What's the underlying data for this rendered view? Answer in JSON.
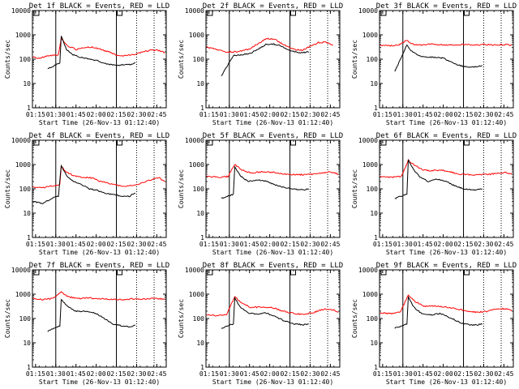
{
  "chart_data": {
    "type": "line",
    "x_ticks": [
      "01:15",
      "01:30",
      "01:45",
      "02:00",
      "02:15",
      "02:30",
      "02:45"
    ],
    "x_label": "Start Time (26-Nov-13 01:12:40)",
    "y_label": "Counts/sec",
    "y_scale": "log",
    "ylim": [
      1,
      10000
    ],
    "y_ticks": [
      "1",
      "10",
      "100",
      "1000",
      "10000"
    ],
    "xlim_minutes": [
      "01:12:40",
      "02:52:00"
    ],
    "series_colors": {
      "events": "#000000",
      "lld": "#ff0000"
    },
    "panels": [
      {
        "title": "Det 1f BLACK = Events, RED = LLD",
        "solid_lines": [
          "01:30",
          "02:15"
        ],
        "dotted_lines": [
          "02:30",
          "02:43"
        ],
        "events": [
          [
            1.4,
            40
          ],
          [
            1.55,
            70
          ],
          [
            1.567,
            900
          ],
          [
            1.633,
            250
          ],
          [
            1.7,
            160
          ],
          [
            1.8,
            120
          ],
          [
            1.917,
            100
          ],
          [
            2.0,
            90
          ],
          [
            2.083,
            70
          ],
          [
            2.167,
            60
          ],
          [
            2.25,
            55
          ],
          [
            2.333,
            60
          ],
          [
            2.433,
            60
          ],
          [
            2.483,
            70
          ]
        ],
        "lld": [
          [
            1.217,
            120
          ],
          [
            1.3,
            110
          ],
          [
            1.4,
            140
          ],
          [
            1.533,
            150
          ],
          [
            1.567,
            700
          ],
          [
            1.65,
            350
          ],
          [
            1.75,
            250
          ],
          [
            1.85,
            300
          ],
          [
            1.95,
            320
          ],
          [
            2.05,
            260
          ],
          [
            2.15,
            200
          ],
          [
            2.25,
            150
          ],
          [
            2.333,
            140
          ],
          [
            2.45,
            150
          ],
          [
            2.583,
            200
          ],
          [
            2.667,
            230
          ],
          [
            2.783,
            230
          ],
          [
            2.85,
            180
          ]
        ]
      },
      {
        "title": "Det 2f BLACK = Events, RED = LLD",
        "solid_lines": [
          "01:30",
          "02:15"
        ],
        "dotted_lines": [
          "02:30",
          "02:43"
        ],
        "events": [
          [
            1.4,
            20
          ],
          [
            1.55,
            140
          ],
          [
            1.633,
            150
          ],
          [
            1.75,
            170
          ],
          [
            1.85,
            250
          ],
          [
            1.95,
            400
          ],
          [
            2.05,
            420
          ],
          [
            2.133,
            350
          ],
          [
            2.25,
            230
          ],
          [
            2.367,
            180
          ],
          [
            2.483,
            200
          ]
        ],
        "lld": [
          [
            1.217,
            320
          ],
          [
            1.333,
            250
          ],
          [
            1.45,
            200
          ],
          [
            1.6,
            200
          ],
          [
            1.75,
            260
          ],
          [
            1.883,
            500
          ],
          [
            1.967,
            700
          ],
          [
            2.067,
            650
          ],
          [
            2.167,
            400
          ],
          [
            2.3,
            250
          ],
          [
            2.4,
            230
          ],
          [
            2.517,
            350
          ],
          [
            2.6,
            480
          ],
          [
            2.7,
            500
          ],
          [
            2.783,
            380
          ]
        ]
      },
      {
        "title": "Det 3f BLACK = Events, RED = LLD",
        "solid_lines": [
          "01:30",
          "02:15"
        ],
        "dotted_lines": [
          "02:30",
          "02:43"
        ],
        "events": [
          [
            1.4,
            30
          ],
          [
            1.55,
            400
          ],
          [
            1.6,
            220
          ],
          [
            1.7,
            140
          ],
          [
            1.8,
            120
          ],
          [
            1.917,
            120
          ],
          [
            2.0,
            110
          ],
          [
            2.083,
            80
          ],
          [
            2.167,
            60
          ],
          [
            2.25,
            50
          ],
          [
            2.333,
            45
          ],
          [
            2.433,
            50
          ],
          [
            2.483,
            55
          ]
        ],
        "lld": [
          [
            1.217,
            380
          ],
          [
            1.333,
            350
          ],
          [
            1.45,
            380
          ],
          [
            1.55,
            600
          ],
          [
            1.633,
            400
          ],
          [
            1.75,
            380
          ],
          [
            1.85,
            420
          ],
          [
            1.95,
            400
          ],
          [
            2.083,
            380
          ],
          [
            2.233,
            400
          ],
          [
            2.367,
            380
          ],
          [
            2.5,
            400
          ],
          [
            2.633,
            380
          ],
          [
            2.783,
            400
          ],
          [
            2.85,
            370
          ]
        ]
      },
      {
        "title": "Det 4f BLACK = Events, RED = LLD",
        "solid_lines": [
          "01:30",
          "02:15"
        ],
        "dotted_lines": [
          "02:30",
          "02:43"
        ],
        "events": [
          [
            1.217,
            30
          ],
          [
            1.333,
            25
          ],
          [
            1.45,
            40
          ],
          [
            1.533,
            50
          ],
          [
            1.567,
            900
          ],
          [
            1.633,
            350
          ],
          [
            1.717,
            200
          ],
          [
            1.817,
            150
          ],
          [
            1.917,
            100
          ],
          [
            2.0,
            90
          ],
          [
            2.083,
            70
          ],
          [
            2.167,
            60
          ],
          [
            2.25,
            55
          ],
          [
            2.333,
            50
          ],
          [
            2.417,
            50
          ],
          [
            2.483,
            70
          ]
        ],
        "lld": [
          [
            1.217,
            120
          ],
          [
            1.333,
            110
          ],
          [
            1.45,
            130
          ],
          [
            1.55,
            150
          ],
          [
            1.567,
            800
          ],
          [
            1.65,
            450
          ],
          [
            1.75,
            320
          ],
          [
            1.85,
            300
          ],
          [
            1.95,
            280
          ],
          [
            2.05,
            200
          ],
          [
            2.15,
            170
          ],
          [
            2.25,
            140
          ],
          [
            2.35,
            130
          ],
          [
            2.45,
            140
          ],
          [
            2.583,
            180
          ],
          [
            2.7,
            250
          ],
          [
            2.783,
            280
          ],
          [
            2.85,
            190
          ]
        ]
      },
      {
        "title": "Det 5f BLACK = Events, RED = LLD",
        "solid_lines": [
          "01:30",
          "02:15"
        ],
        "dotted_lines": [
          "02:30",
          "02:43"
        ],
        "events": [
          [
            1.4,
            40
          ],
          [
            1.55,
            60
          ],
          [
            1.567,
            800
          ],
          [
            1.633,
            350
          ],
          [
            1.733,
            200
          ],
          [
            1.85,
            230
          ],
          [
            1.967,
            200
          ],
          [
            2.083,
            140
          ],
          [
            2.2,
            110
          ],
          [
            2.317,
            95
          ],
          [
            2.433,
            90
          ],
          [
            2.483,
            100
          ]
        ],
        "lld": [
          [
            1.217,
            320
          ],
          [
            1.367,
            300
          ],
          [
            1.483,
            320
          ],
          [
            1.567,
            1000
          ],
          [
            1.65,
            600
          ],
          [
            1.767,
            450
          ],
          [
            1.9,
            500
          ],
          [
            2.05,
            480
          ],
          [
            2.2,
            400
          ],
          [
            2.333,
            380
          ],
          [
            2.45,
            380
          ],
          [
            2.583,
            420
          ],
          [
            2.7,
            480
          ],
          [
            2.783,
            480
          ],
          [
            2.85,
            400
          ]
        ]
      },
      {
        "title": "Det 6f BLACK = Events, RED = LLD",
        "solid_lines": [
          "01:30",
          "02:15"
        ],
        "dotted_lines": [
          "02:30",
          "02:43"
        ],
        "events": [
          [
            1.4,
            40
          ],
          [
            1.55,
            60
          ],
          [
            1.567,
            1600
          ],
          [
            1.633,
            600
          ],
          [
            1.717,
            300
          ],
          [
            1.817,
            200
          ],
          [
            1.917,
            250
          ],
          [
            2.033,
            200
          ],
          [
            2.15,
            130
          ],
          [
            2.267,
            100
          ],
          [
            2.383,
            90
          ],
          [
            2.483,
            100
          ]
        ],
        "lld": [
          [
            1.217,
            320
          ],
          [
            1.367,
            300
          ],
          [
            1.483,
            330
          ],
          [
            1.567,
            1500
          ],
          [
            1.65,
            900
          ],
          [
            1.75,
            600
          ],
          [
            1.85,
            550
          ],
          [
            1.967,
            600
          ],
          [
            2.083,
            500
          ],
          [
            2.2,
            400
          ],
          [
            2.333,
            380
          ],
          [
            2.45,
            380
          ],
          [
            2.583,
            400
          ],
          [
            2.7,
            450
          ],
          [
            2.783,
            470
          ],
          [
            2.85,
            400
          ]
        ]
      },
      {
        "title": "Det 7f BLACK = Events, RED = LLD",
        "solid_lines": [
          "01:30",
          "02:15"
        ],
        "dotted_lines": [
          "02:30",
          "02:43"
        ],
        "events": [
          [
            1.4,
            30
          ],
          [
            1.55,
            50
          ],
          [
            1.567,
            600
          ],
          [
            1.633,
            350
          ],
          [
            1.733,
            200
          ],
          [
            1.85,
            200
          ],
          [
            1.967,
            180
          ],
          [
            2.083,
            110
          ],
          [
            2.2,
            60
          ],
          [
            2.317,
            50
          ],
          [
            2.433,
            45
          ],
          [
            2.483,
            55
          ]
        ],
        "lld": [
          [
            1.217,
            700
          ],
          [
            1.333,
            600
          ],
          [
            1.45,
            650
          ],
          [
            1.567,
            1200
          ],
          [
            1.65,
            800
          ],
          [
            1.767,
            650
          ],
          [
            1.9,
            700
          ],
          [
            2.05,
            650
          ],
          [
            2.2,
            620
          ],
          [
            2.333,
            600
          ],
          [
            2.467,
            650
          ],
          [
            2.6,
            620
          ],
          [
            2.733,
            680
          ],
          [
            2.85,
            620
          ]
        ]
      },
      {
        "title": "Det 8f BLACK = Events, RED = LLD",
        "solid_lines": [
          "01:30",
          "02:15"
        ],
        "dotted_lines": [
          "02:30",
          "02:43"
        ],
        "events": [
          [
            1.4,
            40
          ],
          [
            1.55,
            60
          ],
          [
            1.567,
            700
          ],
          [
            1.633,
            300
          ],
          [
            1.733,
            170
          ],
          [
            1.85,
            150
          ],
          [
            1.95,
            170
          ],
          [
            2.067,
            120
          ],
          [
            2.183,
            80
          ],
          [
            2.3,
            60
          ],
          [
            2.417,
            55
          ],
          [
            2.483,
            60
          ]
        ],
        "lld": [
          [
            1.217,
            140
          ],
          [
            1.35,
            130
          ],
          [
            1.467,
            150
          ],
          [
            1.567,
            800
          ],
          [
            1.65,
            450
          ],
          [
            1.767,
            280
          ],
          [
            1.9,
            300
          ],
          [
            2.033,
            280
          ],
          [
            2.167,
            200
          ],
          [
            2.3,
            160
          ],
          [
            2.417,
            150
          ],
          [
            2.55,
            180
          ],
          [
            2.667,
            240
          ],
          [
            2.783,
            230
          ],
          [
            2.85,
            180
          ]
        ]
      },
      {
        "title": "Det 9f BLACK = Events, RED = LLD",
        "solid_lines": [
          "01:30",
          "02:15"
        ],
        "dotted_lines": [
          "02:30",
          "02:43"
        ],
        "events": [
          [
            1.4,
            40
          ],
          [
            1.55,
            60
          ],
          [
            1.567,
            800
          ],
          [
            1.633,
            300
          ],
          [
            1.733,
            160
          ],
          [
            1.85,
            140
          ],
          [
            1.967,
            160
          ],
          [
            2.083,
            110
          ],
          [
            2.2,
            70
          ],
          [
            2.317,
            55
          ],
          [
            2.433,
            55
          ],
          [
            2.483,
            60
          ]
        ],
        "lld": [
          [
            1.217,
            170
          ],
          [
            1.35,
            160
          ],
          [
            1.467,
            180
          ],
          [
            1.567,
            900
          ],
          [
            1.65,
            500
          ],
          [
            1.767,
            320
          ],
          [
            1.9,
            330
          ],
          [
            2.033,
            300
          ],
          [
            2.167,
            250
          ],
          [
            2.3,
            200
          ],
          [
            2.417,
            180
          ],
          [
            2.55,
            200
          ],
          [
            2.667,
            250
          ],
          [
            2.783,
            250
          ],
          [
            2.85,
            210
          ]
        ]
      }
    ]
  }
}
